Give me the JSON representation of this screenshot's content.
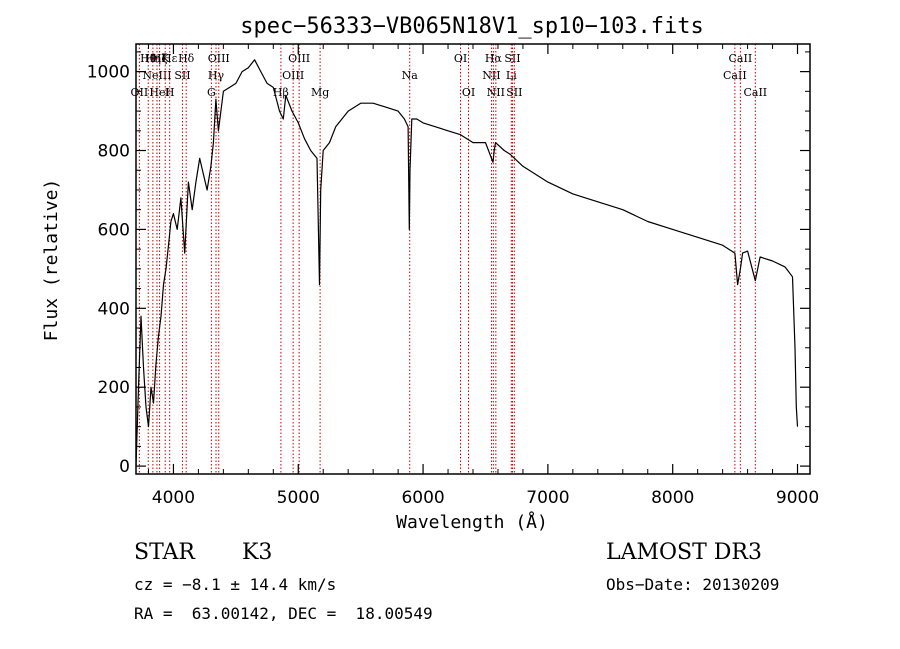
{
  "chart_data": {
    "type": "line",
    "title": "spec−56333−VB065N18V1_sp10−103.fits",
    "xlabel": "Wavelength (Å)",
    "ylabel": "Flux (relative)",
    "xlim": [
      3700,
      9100
    ],
    "ylim": [
      -20,
      1070
    ],
    "x_ticks": [
      4000,
      5000,
      6000,
      7000,
      8000,
      9000
    ],
    "y_ticks": [
      0,
      200,
      400,
      600,
      800,
      1000
    ],
    "series": [
      {
        "name": "flux",
        "x": [
          3700,
          3720,
          3740,
          3760,
          3780,
          3800,
          3820,
          3840,
          3860,
          3880,
          3900,
          3920,
          3940,
          3960,
          3980,
          4000,
          4030,
          4060,
          4090,
          4120,
          4150,
          4180,
          4210,
          4240,
          4270,
          4300,
          4320,
          4340,
          4360,
          4400,
          4450,
          4500,
          4550,
          4600,
          4650,
          4700,
          4750,
          4800,
          4850,
          4880,
          4900,
          4950,
          5000,
          5050,
          5100,
          5150,
          5170,
          5180,
          5200,
          5250,
          5300,
          5400,
          5500,
          5600,
          5700,
          5800,
          5850,
          5880,
          5890,
          5895,
          5910,
          5950,
          6000,
          6100,
          6200,
          6300,
          6400,
          6500,
          6560,
          6570,
          6580,
          6650,
          6700,
          6800,
          7000,
          7200,
          7400,
          7600,
          7800,
          8000,
          8200,
          8400,
          8498,
          8520,
          8542,
          8560,
          8600,
          8662,
          8700,
          8800,
          8900,
          8960,
          8980,
          8990,
          9000
        ],
        "y": [
          0,
          200,
          380,
          250,
          150,
          100,
          200,
          160,
          260,
          330,
          380,
          460,
          500,
          560,
          620,
          640,
          600,
          680,
          540,
          720,
          650,
          720,
          780,
          740,
          700,
          760,
          820,
          930,
          850,
          950,
          960,
          970,
          1000,
          1010,
          1030,
          1000,
          970,
          960,
          900,
          880,
          940,
          900,
          870,
          830,
          800,
          780,
          460,
          700,
          800,
          820,
          860,
          900,
          920,
          920,
          910,
          900,
          880,
          860,
          600,
          750,
          880,
          880,
          870,
          860,
          850,
          840,
          820,
          820,
          770,
          800,
          820,
          800,
          790,
          760,
          720,
          690,
          670,
          650,
          620,
          600,
          580,
          560,
          540,
          460,
          500,
          540,
          545,
          470,
          530,
          520,
          505,
          480,
          300,
          150,
          100
        ],
        "color": "#000000"
      }
    ],
    "emission_lines": [
      {
        "wave": 3727,
        "labels": [
          "OII"
        ],
        "rows": [
          3
        ]
      },
      {
        "wave": 3798,
        "labels": [
          "Hθ"
        ],
        "rows": [
          1
        ]
      },
      {
        "wave": 3835,
        "labels": [
          "Hη"
        ],
        "rows": [
          1
        ]
      },
      {
        "wave": 3868,
        "labels": [
          "NeIII"
        ],
        "rows": [
          2
        ]
      },
      {
        "wave": 3889,
        "labels": [
          "Hζ",
          "HeI"
        ],
        "rows": [
          1,
          3
        ]
      },
      {
        "wave": 3934,
        "labels": [
          "K"
        ],
        "rows": [
          1
        ]
      },
      {
        "wave": 3970,
        "labels": [
          "Hε",
          "H"
        ],
        "rows": [
          1,
          3
        ]
      },
      {
        "wave": 4072,
        "labels": [
          "SII"
        ],
        "rows": [
          2
        ]
      },
      {
        "wave": 4102,
        "labels": [
          "Hδ"
        ],
        "rows": [
          1
        ]
      },
      {
        "wave": 4304,
        "labels": [
          "G"
        ],
        "rows": [
          3
        ]
      },
      {
        "wave": 4341,
        "labels": [
          "Hγ"
        ],
        "rows": [
          2
        ]
      },
      {
        "wave": 4363,
        "labels": [
          "OIII"
        ],
        "rows": [
          1
        ]
      },
      {
        "wave": 4861,
        "labels": [
          "Hβ"
        ],
        "rows": [
          3
        ]
      },
      {
        "wave": 4959,
        "labels": [
          "OIII"
        ],
        "rows": [
          2
        ]
      },
      {
        "wave": 5007,
        "labels": [
          "OIII"
        ],
        "rows": [
          1
        ]
      },
      {
        "wave": 5175,
        "labels": [
          "Mg"
        ],
        "rows": [
          3
        ]
      },
      {
        "wave": 5893,
        "labels": [
          "Na"
        ],
        "rows": [
          2
        ]
      },
      {
        "wave": 6300,
        "labels": [
          "OI"
        ],
        "rows": [
          1
        ]
      },
      {
        "wave": 6364,
        "labels": [
          "OI"
        ],
        "rows": [
          3
        ]
      },
      {
        "wave": 6548,
        "labels": [
          "NII"
        ],
        "rows": [
          2
        ]
      },
      {
        "wave": 6563,
        "labels": [
          "Hα"
        ],
        "rows": [
          1
        ]
      },
      {
        "wave": 6583,
        "labels": [
          "NII"
        ],
        "rows": [
          3
        ]
      },
      {
        "wave": 6707,
        "labels": [
          "Li"
        ],
        "rows": [
          2
        ]
      },
      {
        "wave": 6716,
        "labels": [
          "SII"
        ],
        "rows": [
          1
        ]
      },
      {
        "wave": 6731,
        "labels": [
          "SII"
        ],
        "rows": [
          3
        ]
      },
      {
        "wave": 8498,
        "labels": [
          "CaII"
        ],
        "rows": [
          2
        ]
      },
      {
        "wave": 8542,
        "labels": [
          "CaII"
        ],
        "rows": [
          1
        ]
      },
      {
        "wave": 8662,
        "labels": [
          "CaII"
        ],
        "rows": [
          3
        ]
      }
    ],
    "line_color": "#cc0000"
  },
  "info": {
    "object_class": "STAR",
    "subclass": "K3",
    "survey": "LAMOST DR3",
    "redshift": "cz = −8.1 ± 14.4 km/s",
    "obs_date": "Obs−Date: 20130209",
    "coords": "RA =  63.00142, DEC =  18.00549"
  }
}
